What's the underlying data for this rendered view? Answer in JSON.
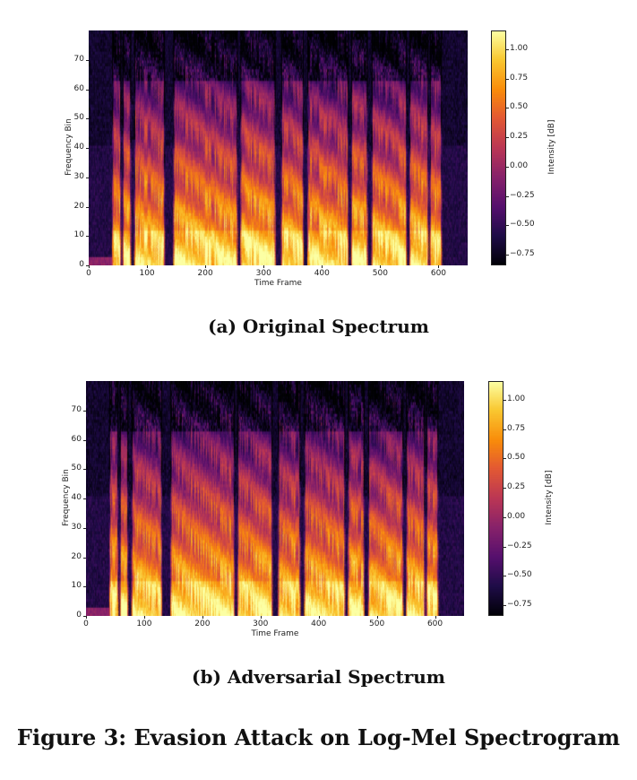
{
  "chart_data": [
    {
      "type": "heatmap",
      "caption": "(a) Original Spectrum",
      "xlabel": "Time Frame",
      "ylabel": "Frequency Bin",
      "xlim": [
        0,
        650
      ],
      "ylim": [
        0,
        80
      ],
      "xticks": [
        "0",
        "100",
        "200",
        "300",
        "400",
        "500",
        "600"
      ],
      "yticks": [
        "0",
        "10",
        "20",
        "30",
        "40",
        "50",
        "60",
        "70"
      ],
      "colormap": "inferno",
      "colorbar": {
        "label": "Intensity [dB]",
        "range": [
          -0.84,
          1.16
        ],
        "ticks": [
          "1.00",
          "0.75",
          "0.50",
          "0.25",
          "0.00",
          "−0.25",
          "−0.50",
          "−0.75"
        ]
      },
      "voiced_segments": [
        [
          40,
          55
        ],
        [
          58,
          72
        ],
        [
          78,
          130
        ],
        [
          145,
          255
        ],
        [
          260,
          320
        ],
        [
          330,
          368
        ],
        [
          375,
          445
        ],
        [
          450,
          478
        ],
        [
          485,
          545
        ],
        [
          550,
          582
        ],
        [
          585,
          605
        ]
      ],
      "seed": 7
    },
    {
      "type": "heatmap",
      "caption": "(b) Adversarial Spectrum",
      "xlabel": "Time Frame",
      "ylabel": "Frequency Bin",
      "xlim": [
        0,
        650
      ],
      "ylim": [
        0,
        80
      ],
      "xticks": [
        "0",
        "100",
        "200",
        "300",
        "400",
        "500",
        "600"
      ],
      "yticks": [
        "0",
        "10",
        "20",
        "30",
        "40",
        "50",
        "60",
        "70"
      ],
      "colormap": "inferno",
      "colorbar": {
        "label": "Intensity [dB]",
        "range": [
          -0.84,
          1.16
        ],
        "ticks": [
          "1.00",
          "0.75",
          "0.50",
          "0.25",
          "0.00",
          "−0.25",
          "−0.50",
          "−0.75"
        ]
      },
      "voiced_segments": [
        [
          40,
          55
        ],
        [
          58,
          72
        ],
        [
          78,
          130
        ],
        [
          145,
          255
        ],
        [
          260,
          320
        ],
        [
          330,
          368
        ],
        [
          375,
          445
        ],
        [
          450,
          478
        ],
        [
          485,
          545
        ],
        [
          550,
          582
        ],
        [
          585,
          605
        ]
      ],
      "seed": 11
    }
  ],
  "figure_caption": "Figure 3: Evasion Attack on Log-Mel Spectrogram"
}
